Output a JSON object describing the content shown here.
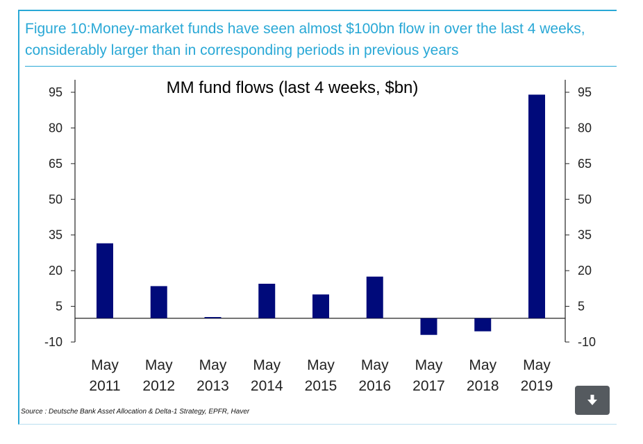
{
  "figure": {
    "heading": "Figure 10:Money-market funds have seen almost $100bn flow in over the last 4 weeks, considerably larger than in corresponding periods in previous years",
    "accent_color": "#29a8d6"
  },
  "chart_data": {
    "type": "bar",
    "title": "MM fund flows (last 4 weeks, $bn)",
    "xlabel": "",
    "ylabel": "",
    "categories": [
      [
        "May",
        "2011"
      ],
      [
        "May",
        "2012"
      ],
      [
        "May",
        "2013"
      ],
      [
        "May",
        "2014"
      ],
      [
        "May",
        "2015"
      ],
      [
        "May",
        "2016"
      ],
      [
        "May",
        "2017"
      ],
      [
        "May",
        "2018"
      ],
      [
        "May",
        "2019"
      ]
    ],
    "values": [
      31.5,
      13.5,
      0.5,
      14.5,
      10,
      17.5,
      -7,
      -5.5,
      94
    ],
    "ylim": [
      -10,
      95
    ],
    "yticks": [
      95,
      80,
      65,
      50,
      35,
      20,
      5,
      -10
    ],
    "ytick_labels": [
      "95",
      "80",
      "65",
      "50",
      "35",
      "20",
      "5",
      "-10"
    ],
    "secondary_y_axis": true,
    "bar_color": "#000a7a",
    "grid": false,
    "legend": "none"
  },
  "source": "Source : Deutsche Bank Asset Allocation & Delta-1 Strategy, EPFR, Haver",
  "toolbar": {
    "download_icon": "download-icon"
  }
}
